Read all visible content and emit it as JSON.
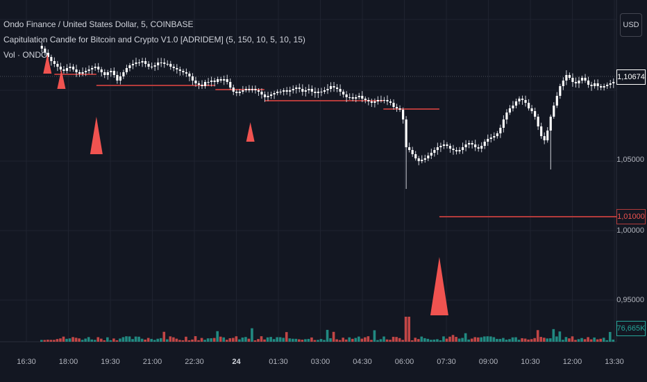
{
  "legend": {
    "symbol_line": "Ondo Finance / United States Dollar, 5, COINBASE",
    "indicator_line": "Capitulation Candle for Bitcoin and Crypto V1.0 [ADRIDEM] (5, 150, 10, 5, 10, 15)",
    "volume_line": "Vol · ONDO"
  },
  "currency_button": "USD",
  "price_axis": [
    "1,05000",
    "1,00000",
    "0,95000"
  ],
  "current_price_badge": "1,10674",
  "level_badge": "1,01000",
  "volume_badge": "76,665K",
  "time_axis": [
    "16:30",
    "18:00",
    "19:30",
    "21:00",
    "22:30",
    "24",
    "01:30",
    "03:00",
    "04:30",
    "06:00",
    "07:30",
    "09:00",
    "10:30",
    "12:00",
    "13:30"
  ],
  "colors": {
    "background": "#131722",
    "candle_up": "#ffffff",
    "candle_down": "#ffffff",
    "level_line": "#b33b3b",
    "signal_triangle": "#f05350",
    "volume_up": "#26a69a",
    "volume_down": "#ef5350"
  },
  "chart_data": {
    "type": "candlestick",
    "y_axis_ticks": [
      1.05,
      1.0,
      0.95
    ],
    "y_range": [
      0.93,
      1.14
    ],
    "current_price": 1.10674,
    "last_volume": "76,665K",
    "support_levels": [
      {
        "from": "17:30",
        "to": "19:00",
        "value": 1.1125
      },
      {
        "from": "19:00",
        "to": "23:15",
        "value": 1.1045
      },
      {
        "from": "23:15",
        "to": "01:00",
        "value": 1.1015
      },
      {
        "from": "01:00",
        "to": "05:15",
        "value": 1.0935
      },
      {
        "from": "05:15",
        "to": "07:15",
        "value": 1.0875
      },
      {
        "from": "07:15",
        "to": "13:40",
        "value": 1.01
      }
    ],
    "signals": [
      {
        "time": "17:15",
        "size": "small"
      },
      {
        "time": "17:45",
        "size": "small"
      },
      {
        "time": "19:00",
        "size": "medium"
      },
      {
        "time": "00:30",
        "size": "small"
      },
      {
        "time": "07:15",
        "size": "large"
      }
    ],
    "close_series": [
      1.131,
      1.128,
      1.125,
      1.122,
      1.12,
      1.118,
      1.116,
      1.115,
      1.117,
      1.118,
      1.116,
      1.114,
      1.113,
      1.114,
      1.115,
      1.116,
      1.117,
      1.118,
      1.116,
      1.114,
      1.112,
      1.114,
      1.115,
      1.112,
      1.108,
      1.111,
      1.114,
      1.117,
      1.119,
      1.12,
      1.121,
      1.121,
      1.122,
      1.12,
      1.118,
      1.118,
      1.119,
      1.121,
      1.121,
      1.12,
      1.12,
      1.118,
      1.117,
      1.116,
      1.115,
      1.114,
      1.113,
      1.111,
      1.108,
      1.106,
      1.105,
      1.104,
      1.107,
      1.107,
      1.108,
      1.107,
      1.109,
      1.108,
      1.109,
      1.107,
      1.103,
      1.1,
      1.099,
      1.1,
      1.101,
      1.102,
      1.101,
      1.102,
      1.101,
      1.1,
      1.098,
      1.096,
      1.097,
      1.098,
      1.099,
      1.1,
      1.1,
      1.101,
      1.1,
      1.101,
      1.102,
      1.103,
      1.102,
      1.1,
      1.101,
      1.102,
      1.1,
      1.099,
      1.1,
      1.1,
      1.101,
      1.102,
      1.104,
      1.103,
      1.102,
      1.1,
      1.098,
      1.096,
      1.096,
      1.095,
      1.096,
      1.097,
      1.095,
      1.094,
      1.093,
      1.092,
      1.093,
      1.094,
      1.094,
      1.094,
      1.093,
      1.092,
      1.089,
      1.088,
      1.087,
      1.08,
      1.06,
      1.058,
      1.055,
      1.052,
      1.05,
      1.051,
      1.052,
      1.054,
      1.056,
      1.058,
      1.06,
      1.061,
      1.062,
      1.061,
      1.059,
      1.058,
      1.057,
      1.058,
      1.06,
      1.062,
      1.063,
      1.062,
      1.06,
      1.059,
      1.061,
      1.064,
      1.066,
      1.067,
      1.068,
      1.07,
      1.074,
      1.08,
      1.085,
      1.088,
      1.09,
      1.093,
      1.095,
      1.094,
      1.092,
      1.088,
      1.086,
      1.082,
      1.075,
      1.068,
      1.065,
      1.072,
      1.082,
      1.09,
      1.097,
      1.104,
      1.108,
      1.112,
      1.11,
      1.107,
      1.106,
      1.108,
      1.11,
      1.108,
      1.105,
      1.104,
      1.106,
      1.104,
      1.103,
      1.104,
      1.105,
      1.106,
      1.107
    ]
  }
}
